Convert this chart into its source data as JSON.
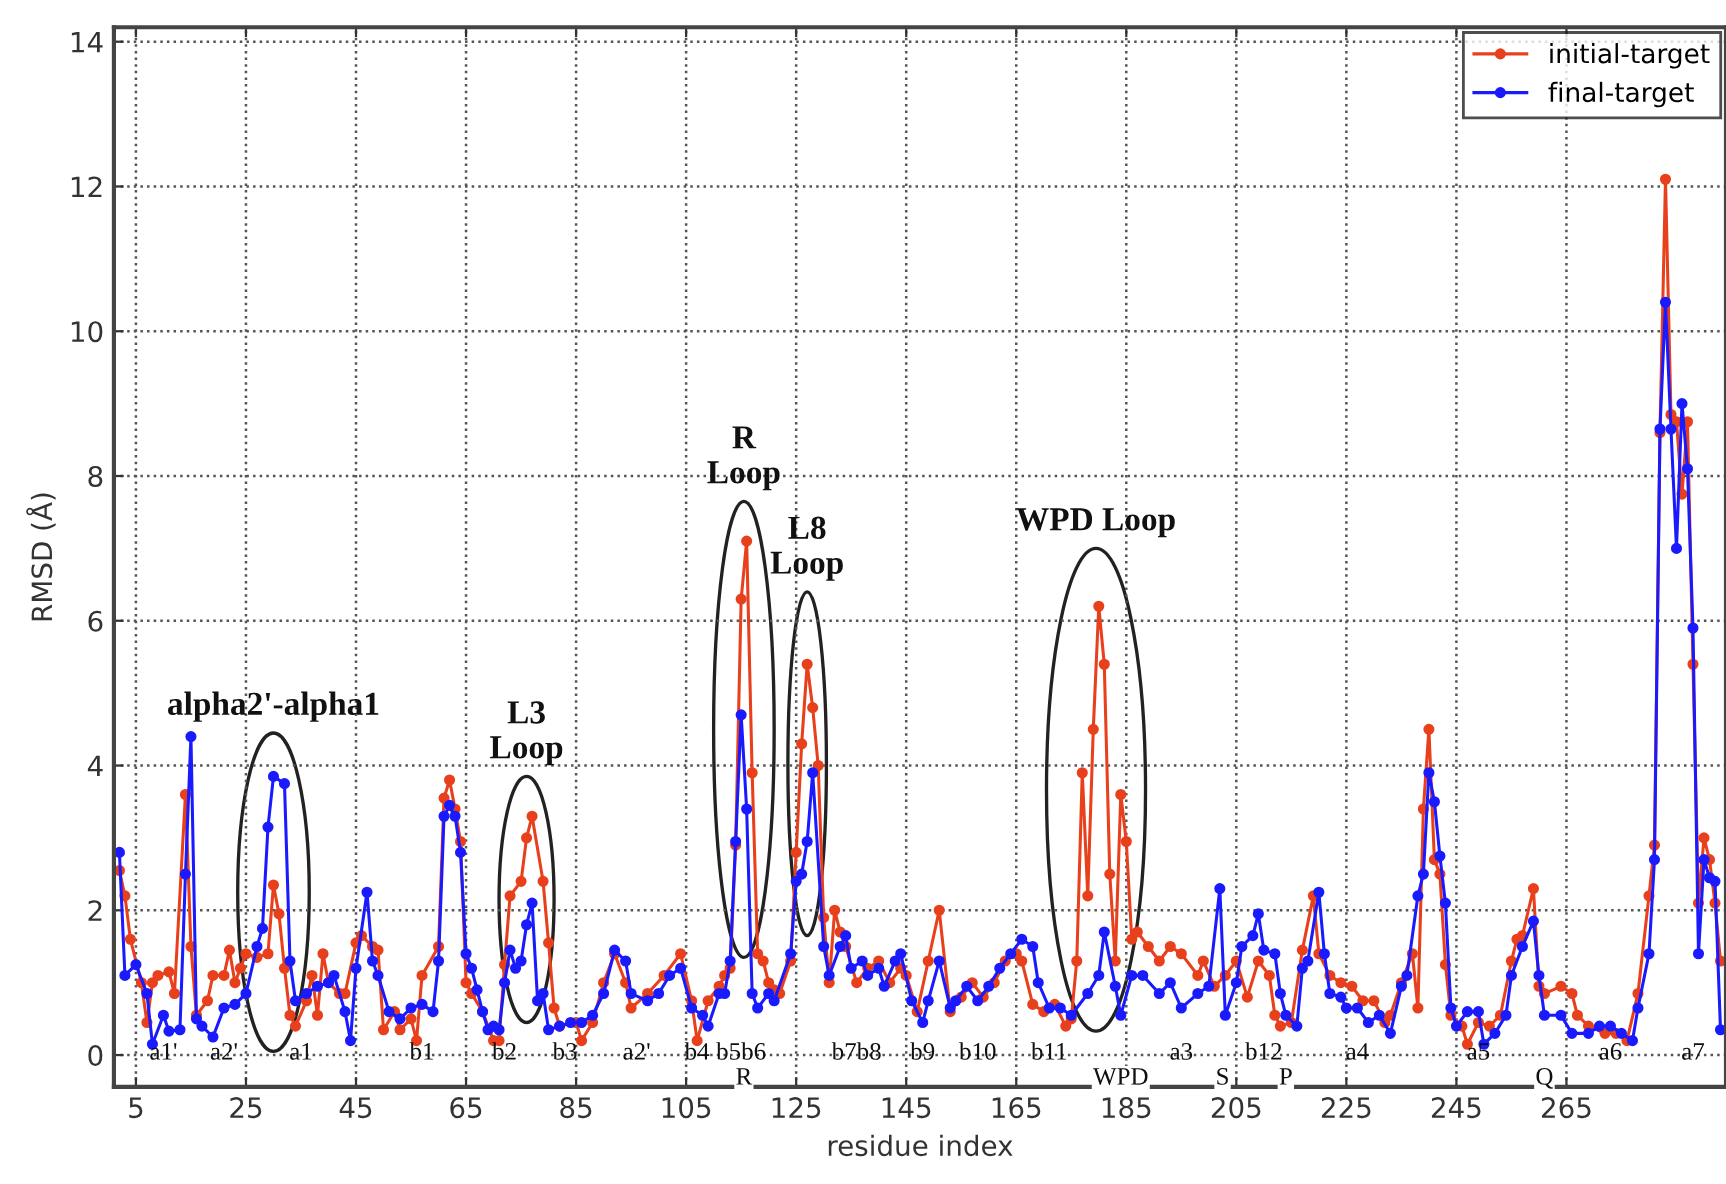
{
  "chart_data": {
    "type": "line",
    "xlabel": "residue index",
    "ylabel": "RMSD (Å)",
    "xlim": [
      1,
      294
    ],
    "ylim": [
      -0.44,
      14.2
    ],
    "xticks": [
      5,
      25,
      45,
      65,
      85,
      105,
      125,
      145,
      165,
      185,
      205,
      225,
      245,
      265
    ],
    "yticks": [
      0,
      2,
      4,
      6,
      8,
      10,
      12,
      14
    ],
    "grid": true,
    "legend": "top right",
    "marker": "circle",
    "line_style": "solid",
    "series": [
      {
        "name": "initial-target",
        "color": "#e8401c",
        "x": [
          2,
          3,
          4,
          6,
          7,
          8,
          9,
          11,
          12,
          14,
          15,
          16,
          18,
          19,
          21,
          22,
          23,
          24,
          25,
          27,
          29,
          30,
          31,
          32,
          33,
          34,
          36,
          37,
          38,
          39,
          40,
          42,
          43,
          45,
          46,
          48,
          49,
          50,
          52,
          53,
          55,
          56,
          57,
          60,
          61,
          62,
          63,
          64,
          65,
          66,
          68,
          70,
          71,
          72,
          73,
          75,
          76,
          77,
          79,
          80,
          81,
          82,
          85,
          86,
          88,
          90,
          92,
          94,
          95,
          98,
          101,
          104,
          106,
          107,
          109,
          111,
          112,
          113,
          114,
          115,
          116,
          117,
          118,
          119,
          120,
          121,
          122,
          124,
          125,
          126,
          127,
          128,
          129,
          130,
          131,
          132,
          133,
          134,
          136,
          138,
          140,
          142,
          144,
          145,
          147,
          149,
          151,
          153,
          155,
          157,
          159,
          161,
          163,
          165,
          166,
          168,
          170,
          172,
          174,
          175,
          176,
          177,
          178,
          179,
          180,
          181,
          182,
          183,
          184,
          185,
          186,
          187,
          189,
          191,
          193,
          195,
          198,
          199,
          201,
          203,
          205,
          207,
          209,
          211,
          212,
          213,
          215,
          217,
          219,
          220,
          222,
          224,
          226,
          228,
          230,
          232,
          233,
          235,
          237,
          238,
          239,
          240,
          241,
          242,
          243,
          244,
          246,
          247,
          249,
          251,
          253,
          255,
          256,
          257,
          259,
          260,
          261,
          264,
          266,
          267,
          269,
          272,
          274,
          276,
          278,
          280,
          281,
          282,
          283,
          284,
          285,
          286,
          287,
          288,
          289,
          290,
          291,
          292,
          293
        ],
        "values": [
          2.55,
          2.2,
          1.6,
          1.0,
          0.45,
          1.0,
          1.1,
          1.15,
          0.85,
          3.6,
          1.5,
          0.55,
          0.75,
          1.1,
          1.1,
          1.45,
          1.0,
          1.2,
          1.4,
          1.35,
          1.4,
          2.35,
          1.95,
          1.2,
          0.55,
          0.4,
          0.75,
          1.1,
          0.55,
          1.4,
          1.0,
          0.85,
          0.85,
          1.55,
          1.65,
          1.5,
          1.45,
          0.35,
          0.6,
          0.35,
          0.5,
          0.2,
          1.1,
          1.5,
          3.55,
          3.8,
          3.4,
          2.95,
          1.0,
          0.85,
          0.6,
          0.2,
          0.2,
          1.25,
          2.2,
          2.4,
          3.0,
          3.3,
          2.4,
          1.55,
          0.65,
          0.4,
          0.45,
          0.2,
          0.45,
          1.0,
          1.4,
          1.0,
          0.65,
          0.85,
          1.1,
          1.4,
          0.75,
          0.2,
          0.75,
          0.95,
          1.1,
          1.2,
          2.9,
          6.3,
          7.1,
          3.9,
          1.4,
          1.3,
          1.0,
          0.9,
          0.85,
          1.3,
          2.8,
          4.3,
          5.4,
          4.8,
          4.0,
          1.9,
          1.0,
          2.0,
          1.7,
          1.5,
          1.0,
          1.2,
          1.3,
          1.0,
          1.2,
          1.1,
          0.6,
          1.3,
          2.0,
          0.6,
          0.8,
          1.0,
          0.8,
          1.0,
          1.3,
          1.4,
          1.3,
          0.7,
          0.6,
          0.7,
          0.4,
          0.5,
          1.3,
          3.9,
          2.2,
          4.5,
          6.2,
          5.4,
          2.5,
          1.3,
          3.6,
          2.95,
          1.6,
          1.7,
          1.5,
          1.3,
          1.5,
          1.4,
          1.1,
          1.3,
          0.95,
          1.1,
          1.3,
          0.8,
          1.3,
          1.1,
          0.55,
          0.4,
          0.45,
          1.45,
          2.2,
          1.4,
          1.1,
          1.0,
          0.95,
          0.75,
          0.75,
          0.45,
          0.55,
          1.0,
          1.4,
          0.65,
          3.4,
          4.5,
          2.7,
          2.5,
          1.25,
          0.55,
          0.4,
          0.15,
          0.45,
          0.4,
          0.55,
          1.3,
          1.6,
          1.65,
          2.3,
          0.95,
          0.85,
          0.95,
          0.85,
          0.55,
          0.4,
          0.3,
          0.3,
          0.2,
          0.85,
          2.2,
          2.9,
          8.6,
          12.1,
          8.85,
          8.75,
          7.75,
          8.75,
          5.4,
          2.1,
          3.0,
          2.7,
          2.1,
          1.3
        ]
      },
      {
        "name": "final-target",
        "color": "#1a1aff",
        "x": [
          2,
          3,
          5,
          7,
          8,
          10,
          11,
          13,
          14,
          15,
          16,
          17,
          19,
          21,
          23,
          25,
          27,
          28,
          29,
          30,
          32,
          33,
          34,
          36,
          38,
          40,
          41,
          43,
          44,
          45,
          47,
          48,
          49,
          51,
          53,
          55,
          57,
          59,
          60,
          61,
          62,
          63,
          64,
          65,
          66,
          67,
          68,
          69,
          70,
          71,
          72,
          73,
          74,
          75,
          76,
          77,
          78,
          79,
          80,
          82,
          84,
          86,
          88,
          90,
          92,
          94,
          95,
          98,
          100,
          102,
          104,
          106,
          108,
          109,
          111,
          112,
          113,
          114,
          115,
          116,
          117,
          118,
          120,
          121,
          124,
          125,
          126,
          127,
          128,
          130,
          131,
          133,
          134,
          135,
          137,
          138,
          140,
          141,
          143,
          144,
          146,
          148,
          149,
          151,
          153,
          154,
          156,
          158,
          160,
          162,
          164,
          166,
          168,
          169,
          171,
          173,
          175,
          178,
          180,
          181,
          183,
          184,
          186,
          188,
          191,
          193,
          195,
          198,
          200,
          202,
          203,
          205,
          206,
          208,
          209,
          210,
          212,
          213,
          214,
          216,
          217,
          218,
          220,
          221,
          222,
          224,
          225,
          227,
          229,
          231,
          233,
          235,
          236,
          238,
          239,
          240,
          241,
          242,
          243,
          244,
          245,
          247,
          249,
          250,
          252,
          254,
          255,
          257,
          259,
          260,
          261,
          264,
          266,
          269,
          271,
          273,
          275,
          277,
          278,
          280,
          281,
          282,
          283,
          284,
          285,
          286,
          287,
          288,
          289,
          290,
          291,
          292,
          293
        ],
        "values": [
          2.8,
          1.1,
          1.25,
          0.85,
          0.15,
          0.55,
          0.33,
          0.35,
          2.5,
          4.4,
          0.5,
          0.4,
          0.25,
          0.65,
          0.7,
          0.85,
          1.5,
          1.75,
          3.15,
          3.85,
          3.75,
          1.3,
          0.75,
          0.85,
          0.95,
          1.0,
          1.1,
          0.6,
          0.2,
          1.2,
          2.25,
          1.3,
          1.1,
          0.6,
          0.5,
          0.65,
          0.7,
          0.6,
          1.3,
          3.3,
          3.45,
          3.3,
          2.8,
          1.4,
          1.2,
          0.9,
          0.6,
          0.35,
          0.4,
          0.35,
          1.0,
          1.45,
          1.2,
          1.3,
          1.8,
          2.1,
          0.75,
          0.85,
          0.35,
          0.4,
          0.45,
          0.45,
          0.55,
          0.85,
          1.45,
          1.3,
          0.85,
          0.75,
          0.85,
          1.1,
          1.2,
          0.65,
          0.55,
          0.4,
          0.85,
          0.85,
          1.3,
          2.95,
          4.7,
          3.4,
          0.85,
          0.65,
          0.85,
          0.75,
          1.4,
          2.4,
          2.5,
          2.95,
          3.9,
          1.5,
          1.1,
          1.5,
          1.65,
          1.2,
          1.3,
          1.1,
          1.2,
          0.95,
          1.3,
          1.4,
          0.75,
          0.45,
          0.75,
          1.3,
          0.65,
          0.75,
          0.95,
          0.75,
          0.95,
          1.2,
          1.4,
          1.6,
          1.5,
          1.0,
          0.65,
          0.65,
          0.55,
          0.85,
          1.1,
          1.7,
          0.95,
          0.55,
          1.1,
          1.1,
          0.85,
          1.0,
          0.65,
          0.85,
          0.95,
          2.3,
          0.55,
          1.0,
          1.5,
          1.65,
          1.95,
          1.45,
          1.4,
          0.85,
          0.55,
          0.4,
          1.2,
          1.3,
          2.25,
          1.4,
          0.85,
          0.8,
          0.65,
          0.65,
          0.45,
          0.55,
          0.3,
          0.95,
          1.1,
          2.2,
          2.5,
          3.9,
          3.5,
          2.75,
          2.1,
          0.65,
          0.4,
          0.6,
          0.6,
          0.15,
          0.3,
          0.55,
          1.1,
          1.5,
          1.85,
          1.1,
          0.55,
          0.55,
          0.3,
          0.3,
          0.4,
          0.4,
          0.3,
          0.2,
          0.65,
          1.4,
          2.7,
          8.65,
          10.4,
          8.65,
          7.0,
          9.0,
          8.1,
          5.9,
          1.4,
          2.7,
          2.45,
          2.4,
          0.35
        ]
      }
    ],
    "annotations": [
      "alpha2'-alpha1",
      "L3\nLoop",
      "R\nLoop",
      "L8\nLoop",
      "WPD Loop",
      "a1'",
      "a2'",
      "a1",
      "b1",
      "b2",
      "b3",
      "a2'",
      "b4",
      "b5b6",
      "R",
      "b7b8",
      "b9",
      "b10",
      "b11",
      "WPD",
      "a3",
      "S",
      "b12",
      "P",
      "a4",
      "a5",
      "Q",
      "a6",
      "a7"
    ]
  }
}
